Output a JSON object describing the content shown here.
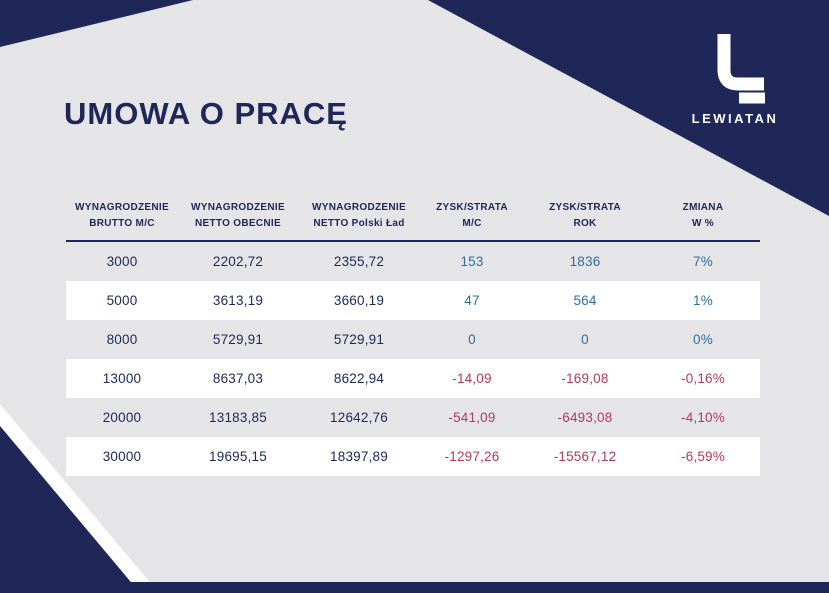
{
  "title": "UMOWA O PRACĘ",
  "logo": {
    "brand": "LEWIATAN"
  },
  "colors": {
    "navy": "#1e2757",
    "positive": "#2e6f9e",
    "negative": "#b23a5e"
  },
  "table": {
    "headers": [
      {
        "line1": "WYNAGRODZENIE",
        "line2": "BRUTTO M/C"
      },
      {
        "line1": "WYNAGRODZENIE",
        "line2": "NETTO OBECNIE"
      },
      {
        "line1": "WYNAGRODZENIE",
        "line2": "NETTO Polski Ład"
      },
      {
        "line1": "ZYSK/STRATA",
        "line2": "M/C"
      },
      {
        "line1": "ZYSK/STRATA",
        "line2": "ROK"
      },
      {
        "line1": "ZMIANA",
        "line2": "W %"
      }
    ],
    "rows": [
      [
        "3000",
        "2202,72",
        "2355,72",
        "153",
        "1836",
        "7%"
      ],
      [
        "5000",
        "3613,19",
        "3660,19",
        "47",
        "564",
        "1%"
      ],
      [
        "8000",
        "5729,91",
        "5729,91",
        "0",
        "0",
        "0%"
      ],
      [
        "13000",
        "8637,03",
        "8622,94",
        "-14,09",
        "-169,08",
        "-0,16%"
      ],
      [
        "20000",
        "13183,85",
        "12642,76",
        "-541,09",
        "-6493,08",
        "-4,10%"
      ],
      [
        "30000",
        "19695,15",
        "18397,89",
        "-1297,26",
        "-15567,12",
        "-6,59%"
      ]
    ]
  }
}
